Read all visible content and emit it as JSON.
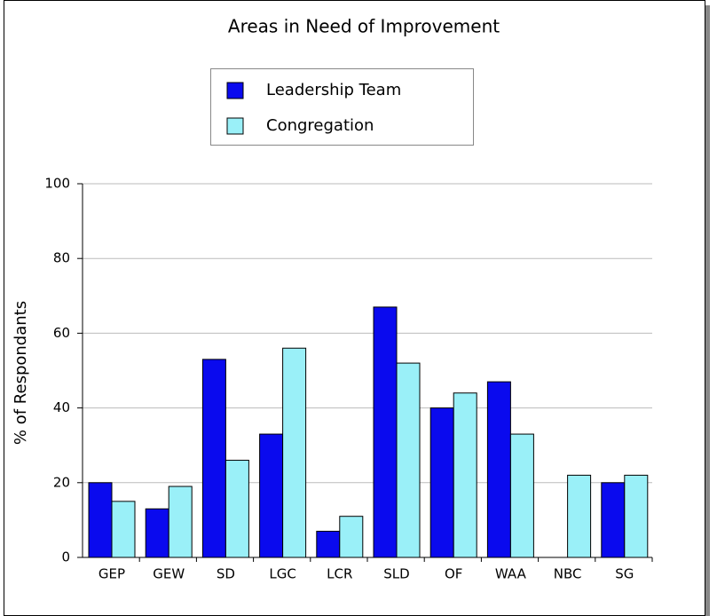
{
  "chart_data": {
    "type": "bar",
    "title": "Areas in Need of Improvement",
    "y_label": "% of Respondants",
    "categories": [
      "GEP",
      "GEW",
      "SD",
      "LGC",
      "LCR",
      "SLD",
      "OF",
      "WAA",
      "NBC",
      "SG"
    ],
    "series": [
      {
        "name": "Leadership Team",
        "color": "#0a0aee",
        "values": [
          20,
          13,
          53,
          33,
          7,
          67,
          40,
          47,
          0,
          20
        ]
      },
      {
        "name": "Congregation",
        "color": "#9af0f8",
        "values": [
          15,
          19,
          26,
          56,
          11,
          52,
          44,
          33,
          22,
          22
        ]
      }
    ],
    "ylim": [
      0,
      100
    ],
    "yticks": [
      0,
      20,
      40,
      60,
      80,
      100
    ],
    "grid": true,
    "legend": "top"
  }
}
